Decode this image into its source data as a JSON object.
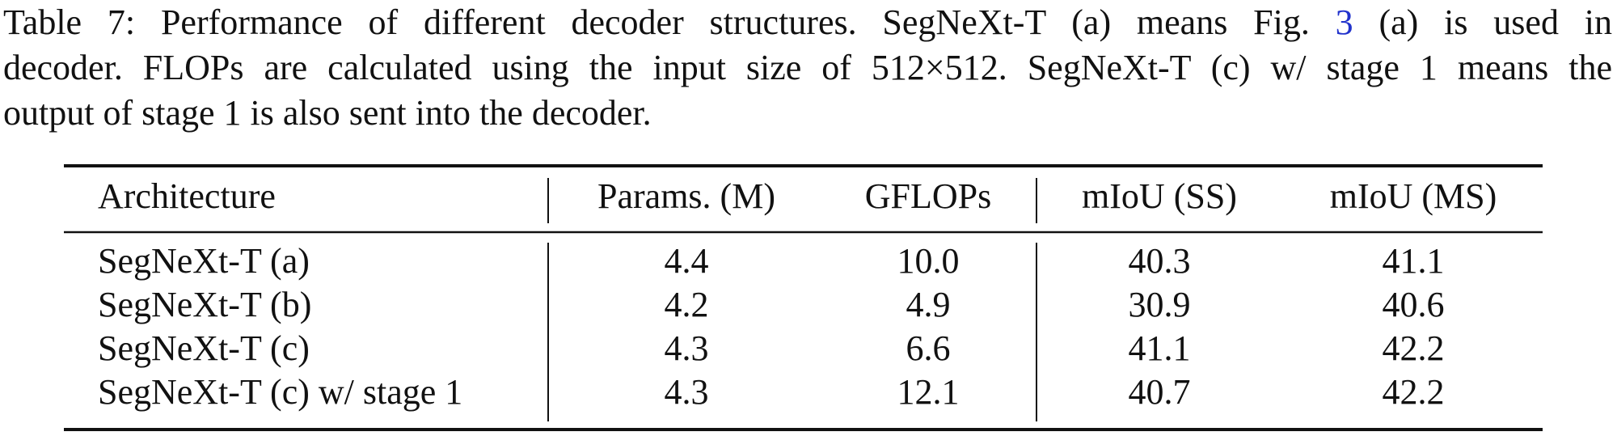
{
  "caption": {
    "line1_before": "Table 7: Performance of different decoder structures. SegNeXt-T (a) means Fig. ",
    "ref": "3",
    "line1_after": " (a) is used in",
    "line2": "decoder. FLOPs are calculated using the input size of 512×512. SegNeXt-T (c) w/ stage 1 means the",
    "line3": "output of stage 1 is also sent into the decoder."
  },
  "table": {
    "header": [
      "Architecture",
      "Params. (M)",
      "GFLOPs",
      "mIoU (SS)",
      "mIoU (MS)"
    ],
    "rows": [
      [
        "SegNeXt-T (a)",
        "4.4",
        "10.0",
        "40.3",
        "41.1"
      ],
      [
        "SegNeXt-T (b)",
        "4.2",
        "4.9",
        "30.9",
        "40.6"
      ],
      [
        "SegNeXt-T (c)",
        "4.3",
        "6.6",
        "41.1",
        "42.2"
      ],
      [
        "SegNeXt-T (c) w/ stage 1",
        "4.3",
        "12.1",
        "40.7",
        "42.2"
      ]
    ]
  }
}
